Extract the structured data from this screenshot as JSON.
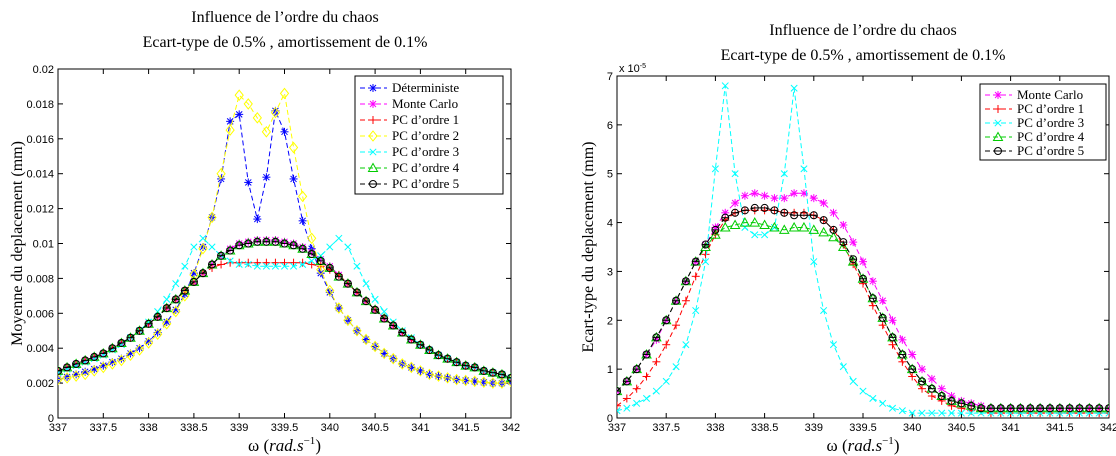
{
  "chart_data": [
    {
      "type": "line",
      "title": [
        "Influence de l’ordre du chaos",
        "Ecart-type de 0.5% , amortissement de 0.1%"
      ],
      "xlabel": {
        "symbol": "ω",
        "unit": "rad.s",
        "exp": "−1"
      },
      "ylabel": "Moyenne du deplacement  (mm)",
      "xlim": [
        337,
        342
      ],
      "ylim": [
        0,
        0.02
      ],
      "x_ticks": [
        "337",
        "337.5",
        "338",
        "338.5",
        "339",
        "339.5",
        "340",
        "340.5",
        "341",
        "341.5",
        "342"
      ],
      "y_ticks": [
        "0",
        "0.002",
        "0.004",
        "0.006",
        "0.008",
        "0.01",
        "0.012",
        "0.014",
        "0.016",
        "0.018",
        "0.02"
      ],
      "y_exponent_label": "",
      "legend_position": "top-right",
      "x": [
        337.0,
        337.1,
        337.2,
        337.3,
        337.4,
        337.5,
        337.6,
        337.7,
        337.8,
        337.9,
        338.0,
        338.1,
        338.2,
        338.3,
        338.4,
        338.5,
        338.6,
        338.7,
        338.8,
        338.9,
        339.0,
        339.1,
        339.2,
        339.3,
        339.4,
        339.5,
        339.6,
        339.7,
        339.8,
        339.9,
        340.0,
        340.1,
        340.2,
        340.3,
        340.4,
        340.5,
        340.6,
        340.7,
        340.8,
        340.9,
        341.0,
        341.1,
        341.2,
        341.3,
        341.4,
        341.5,
        341.6,
        341.7,
        341.8,
        341.9,
        342.0
      ],
      "series": [
        {
          "name": "Déterministe",
          "color": "#0000ff",
          "marker": "star",
          "values": [
            0.0022,
            0.00235,
            0.0025,
            0.00265,
            0.0028,
            0.003,
            0.0032,
            0.0034,
            0.0037,
            0.004,
            0.0044,
            0.0049,
            0.0055,
            0.0062,
            0.0071,
            0.0083,
            0.0098,
            0.0115,
            0.0137,
            0.017,
            0.0174,
            0.0135,
            0.0114,
            0.0138,
            0.0176,
            0.0164,
            0.0137,
            0.0113,
            0.0097,
            0.0083,
            0.0072,
            0.0063,
            0.0056,
            0.005,
            0.0045,
            0.0041,
            0.0037,
            0.0034,
            0.0031,
            0.0029,
            0.0027,
            0.0025,
            0.0024,
            0.0023,
            0.0022,
            0.00215,
            0.0021,
            0.00205,
            0.002,
            0.002,
            0.0021
          ]
        },
        {
          "name": "Monte Carlo",
          "color": "#ff00ff",
          "marker": "star",
          "values": [
            0.0027,
            0.0029,
            0.0031,
            0.0033,
            0.0035,
            0.0037,
            0.004,
            0.0043,
            0.0046,
            0.005,
            0.0054,
            0.0058,
            0.0063,
            0.0068,
            0.0073,
            0.0078,
            0.0083,
            0.0088,
            0.0093,
            0.0097,
            0.01,
            0.0101,
            0.0102,
            0.0102,
            0.0102,
            0.0101,
            0.01,
            0.0098,
            0.0095,
            0.0091,
            0.0087,
            0.0082,
            0.0077,
            0.0072,
            0.0067,
            0.0062,
            0.0057,
            0.0053,
            0.0049,
            0.0045,
            0.0042,
            0.0039,
            0.0036,
            0.0034,
            0.0032,
            0.003,
            0.0029,
            0.0027,
            0.0026,
            0.0025,
            0.0023
          ]
        },
        {
          "name": "PC d’ordre 1",
          "color": "#ff0000",
          "marker": "plus",
          "values": [
            0.0027,
            0.0029,
            0.0031,
            0.0033,
            0.0035,
            0.0037,
            0.004,
            0.0043,
            0.0046,
            0.005,
            0.0054,
            0.0058,
            0.0063,
            0.0068,
            0.0073,
            0.0078,
            0.0083,
            0.0086,
            0.0088,
            0.0089,
            0.0089,
            0.0089,
            0.0089,
            0.0089,
            0.0089,
            0.0089,
            0.0089,
            0.0089,
            0.0088,
            0.0087,
            0.0085,
            0.0082,
            0.0077,
            0.0072,
            0.0067,
            0.0062,
            0.0057,
            0.0053,
            0.0049,
            0.0045,
            0.0042,
            0.0039,
            0.0036,
            0.0034,
            0.0032,
            0.003,
            0.0029,
            0.0027,
            0.0026,
            0.0025,
            0.0023
          ]
        },
        {
          "name": "PC d’ordre 2",
          "color": "#ffff00",
          "marker": "diamond",
          "values": [
            0.0022,
            0.0023,
            0.0024,
            0.0025,
            0.0027,
            0.0029,
            0.0031,
            0.0033,
            0.0036,
            0.0039,
            0.0043,
            0.0048,
            0.0054,
            0.0061,
            0.007,
            0.0082,
            0.0097,
            0.0115,
            0.014,
            0.0165,
            0.0185,
            0.018,
            0.0172,
            0.0164,
            0.0175,
            0.0186,
            0.0155,
            0.0127,
            0.0103,
            0.0085,
            0.0073,
            0.0063,
            0.0056,
            0.005,
            0.0045,
            0.0041,
            0.0037,
            0.0034,
            0.0031,
            0.0029,
            0.0027,
            0.0025,
            0.0024,
            0.0023,
            0.0022,
            0.00215,
            0.0021,
            0.00205,
            0.002,
            0.002,
            0.0021
          ]
        },
        {
          "name": "PC d’ordre 3",
          "color": "#00ffff",
          "marker": "x",
          "values": [
            0.0026,
            0.0028,
            0.003,
            0.0032,
            0.0034,
            0.0036,
            0.0039,
            0.0042,
            0.0046,
            0.005,
            0.0055,
            0.0061,
            0.0068,
            0.0077,
            0.0087,
            0.0098,
            0.0103,
            0.0098,
            0.0093,
            0.009,
            0.0088,
            0.0088,
            0.0087,
            0.0087,
            0.0087,
            0.0087,
            0.0087,
            0.0088,
            0.009,
            0.0093,
            0.0098,
            0.0103,
            0.0098,
            0.0087,
            0.0077,
            0.0068,
            0.0061,
            0.0055,
            0.005,
            0.0046,
            0.0042,
            0.0039,
            0.0036,
            0.0034,
            0.0032,
            0.003,
            0.0029,
            0.0027,
            0.0026,
            0.0025,
            0.0023
          ]
        },
        {
          "name": "PC d’ordre 4",
          "color": "#00cc00",
          "marker": "triangle",
          "values": [
            0.0027,
            0.0029,
            0.0031,
            0.0033,
            0.0035,
            0.0037,
            0.004,
            0.0043,
            0.0046,
            0.005,
            0.0054,
            0.0058,
            0.0063,
            0.0068,
            0.0073,
            0.0078,
            0.0083,
            0.0088,
            0.0093,
            0.0096,
            0.0099,
            0.01,
            0.0101,
            0.0101,
            0.0101,
            0.01,
            0.0099,
            0.0097,
            0.0094,
            0.009,
            0.0086,
            0.0081,
            0.0077,
            0.0072,
            0.0067,
            0.0062,
            0.0057,
            0.0053,
            0.0049,
            0.0045,
            0.0042,
            0.0039,
            0.0036,
            0.0034,
            0.0032,
            0.003,
            0.0029,
            0.0027,
            0.0026,
            0.0025,
            0.0023
          ]
        },
        {
          "name": "PC d’ordre 5",
          "color": "#000000",
          "marker": "circle",
          "values": [
            0.0027,
            0.0029,
            0.0031,
            0.0033,
            0.0035,
            0.0037,
            0.004,
            0.0043,
            0.0046,
            0.005,
            0.0054,
            0.0058,
            0.0063,
            0.0068,
            0.0073,
            0.0078,
            0.0083,
            0.0088,
            0.0093,
            0.0096,
            0.0099,
            0.01,
            0.0101,
            0.0101,
            0.0101,
            0.01,
            0.0099,
            0.0097,
            0.0094,
            0.009,
            0.0086,
            0.0081,
            0.0077,
            0.0072,
            0.0067,
            0.0062,
            0.0057,
            0.0053,
            0.0049,
            0.0045,
            0.0042,
            0.0039,
            0.0036,
            0.0034,
            0.0032,
            0.003,
            0.0029,
            0.0027,
            0.0026,
            0.0025,
            0.0023
          ]
        }
      ]
    },
    {
      "type": "line",
      "title": [
        "Influence de l’ordre du chaos",
        "Ecart-type de 0.5% , amortissement de 0.1%"
      ],
      "xlabel": {
        "symbol": "ω",
        "unit": "rad.s",
        "exp": "−1"
      },
      "ylabel": "Ecart-type du deplacement  (mm)",
      "xlim": [
        337,
        342
      ],
      "ylim": [
        0,
        7
      ],
      "x_ticks": [
        "337",
        "337.5",
        "338",
        "338.5",
        "339",
        "339.5",
        "340",
        "340.5",
        "341",
        "341.5",
        "342"
      ],
      "y_ticks": [
        "0",
        "1",
        "2",
        "3",
        "4",
        "5",
        "6",
        "7"
      ],
      "y_exponent_label": "x 10",
      "y_exponent_power": "-5",
      "legend_position": "top-right",
      "x": [
        337.0,
        337.1,
        337.2,
        337.3,
        337.4,
        337.5,
        337.6,
        337.7,
        337.8,
        337.9,
        338.0,
        338.1,
        338.2,
        338.3,
        338.4,
        338.5,
        338.6,
        338.7,
        338.8,
        338.9,
        339.0,
        339.1,
        339.2,
        339.3,
        339.4,
        339.5,
        339.6,
        339.7,
        339.8,
        339.9,
        340.0,
        340.1,
        340.2,
        340.3,
        340.4,
        340.5,
        340.6,
        340.7,
        340.8,
        340.9,
        341.0,
        341.1,
        341.2,
        341.3,
        341.4,
        341.5,
        341.6,
        341.7,
        341.8,
        341.9,
        342.0
      ],
      "series": [
        {
          "name": "Monte Carlo",
          "color": "#ff00ff",
          "marker": "star",
          "values": [
            0.55,
            0.75,
            1.0,
            1.3,
            1.6,
            2.0,
            2.4,
            2.8,
            3.2,
            3.55,
            3.9,
            4.2,
            4.4,
            4.55,
            4.6,
            4.55,
            4.5,
            4.5,
            4.6,
            4.6,
            4.5,
            4.4,
            4.2,
            3.95,
            3.6,
            3.2,
            2.8,
            2.4,
            2.0,
            1.6,
            1.3,
            1.0,
            0.8,
            0.6,
            0.45,
            0.35,
            0.3,
            0.25,
            0.2,
            0.2,
            0.2,
            0.2,
            0.2,
            0.2,
            0.2,
            0.2,
            0.2,
            0.2,
            0.2,
            0.2,
            0.2
          ]
        },
        {
          "name": "PC d’ordre 1",
          "color": "#ff0000",
          "marker": "plus",
          "values": [
            0.25,
            0.4,
            0.6,
            0.85,
            1.15,
            1.5,
            1.9,
            2.4,
            2.9,
            3.35,
            3.75,
            4.05,
            4.2,
            4.25,
            4.25,
            4.25,
            4.25,
            4.2,
            4.2,
            4.2,
            4.15,
            4.05,
            3.85,
            3.55,
            3.15,
            2.75,
            2.3,
            1.9,
            1.5,
            1.15,
            0.85,
            0.6,
            0.45,
            0.35,
            0.25,
            0.2,
            0.15,
            0.15,
            0.1,
            0.1,
            0.1,
            0.1,
            0.1,
            0.1,
            0.1,
            0.1,
            0.1,
            0.1,
            0.1,
            0.1,
            0.1
          ]
        },
        {
          "name": "PC d’ordre 3",
          "color": "#00ffff",
          "marker": "x",
          "values": [
            0.15,
            0.2,
            0.3,
            0.4,
            0.55,
            0.75,
            1.05,
            1.5,
            2.2,
            3.2,
            5.1,
            6.8,
            5.0,
            3.9,
            3.75,
            3.75,
            3.9,
            5.0,
            6.75,
            5.1,
            3.2,
            2.2,
            1.5,
            1.05,
            0.75,
            0.55,
            0.4,
            0.3,
            0.2,
            0.15,
            0.1,
            0.1,
            0.1,
            0.1,
            0.1,
            0.1,
            0.1,
            0.1,
            0.1,
            0.1,
            0.1,
            0.1,
            0.1,
            0.1,
            0.1,
            0.1,
            0.1,
            0.1,
            0.1,
            0.1,
            0.1
          ]
        },
        {
          "name": "PC d’ordre 4",
          "color": "#00cc00",
          "marker": "triangle",
          "values": [
            0.55,
            0.75,
            1.0,
            1.3,
            1.65,
            2.0,
            2.4,
            2.8,
            3.2,
            3.5,
            3.75,
            3.9,
            3.95,
            4.0,
            4.0,
            3.95,
            3.9,
            3.85,
            3.9,
            3.9,
            3.85,
            3.8,
            3.7,
            3.5,
            3.2,
            2.85,
            2.45,
            2.05,
            1.65,
            1.3,
            1.0,
            0.75,
            0.6,
            0.45,
            0.35,
            0.3,
            0.25,
            0.2,
            0.2,
            0.2,
            0.2,
            0.2,
            0.2,
            0.2,
            0.2,
            0.2,
            0.2,
            0.2,
            0.2,
            0.2,
            0.2
          ]
        },
        {
          "name": "PC d’ordre 5",
          "color": "#000000",
          "marker": "circle",
          "values": [
            0.55,
            0.75,
            1.0,
            1.3,
            1.65,
            2.0,
            2.4,
            2.8,
            3.2,
            3.55,
            3.85,
            4.1,
            4.2,
            4.25,
            4.3,
            4.3,
            4.25,
            4.2,
            4.15,
            4.15,
            4.15,
            4.05,
            3.85,
            3.6,
            3.25,
            2.85,
            2.45,
            2.05,
            1.65,
            1.3,
            1.0,
            0.75,
            0.6,
            0.45,
            0.35,
            0.3,
            0.25,
            0.2,
            0.2,
            0.2,
            0.2,
            0.2,
            0.2,
            0.2,
            0.2,
            0.2,
            0.2,
            0.2,
            0.2,
            0.2,
            0.2
          ]
        }
      ]
    }
  ]
}
